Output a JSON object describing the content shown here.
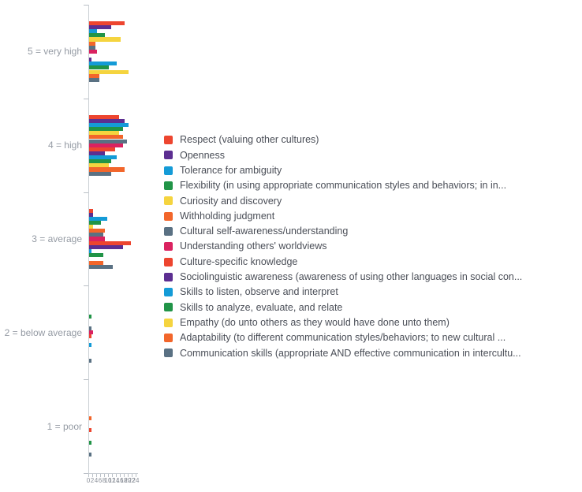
{
  "chart_data": {
    "type": "bar",
    "orientation": "horizontal",
    "title": "",
    "xlabel": "",
    "ylabel": "",
    "xlim": [
      0,
      24
    ],
    "grid": false,
    "legend_position": "right",
    "categories": [
      "5 = very high",
      "4 = high",
      "3 = average",
      "2 = below average",
      "1 = poor"
    ],
    "x_ticks": [
      0,
      2,
      4,
      6,
      8,
      10,
      12,
      14,
      16,
      18,
      20,
      22,
      24
    ],
    "series": [
      {
        "name": "Respect (valuing other cultures)",
        "color": "#ED452F",
        "values": [
          18,
          15,
          2,
          0,
          0
        ]
      },
      {
        "name": "Openness",
        "color": "#5C2E91",
        "values": [
          11,
          18,
          2,
          0,
          0
        ]
      },
      {
        "name": "Tolerance for ambiguity",
        "color": "#149BD7",
        "values": [
          4,
          20,
          9,
          0,
          0
        ]
      },
      {
        "name": "Flexibility (in using appropriate communication styles and behaviors; in in...",
        "color": "#219447",
        "values": [
          8,
          17,
          6,
          1,
          0
        ]
      },
      {
        "name": "Curiosity and discovery",
        "color": "#F5D43F",
        "values": [
          16,
          15,
          2,
          0,
          0
        ]
      },
      {
        "name": "Withholding judgment",
        "color": "#F2662B",
        "values": [
          3,
          17,
          8,
          0,
          1
        ]
      },
      {
        "name": "Cultural self-awareness/understanding",
        "color": "#5A7183",
        "values": [
          3,
          19,
          7,
          1,
          0
        ]
      },
      {
        "name": "Understanding others' worldviews",
        "color": "#DA2260",
        "values": [
          4,
          17,
          8,
          2,
          0
        ]
      },
      {
        "name": "Culture-specific knowledge",
        "color": "#ED452F",
        "values": [
          0,
          13,
          21,
          1,
          1
        ]
      },
      {
        "name": "Sociolinguistic awareness (awareness of using other languages in social con...",
        "color": "#5C2E91",
        "values": [
          1,
          8,
          17,
          0,
          0
        ]
      },
      {
        "name": "Skills to listen, observe and interpret",
        "color": "#149BD7",
        "values": [
          14,
          14,
          1,
          1,
          0
        ]
      },
      {
        "name": "Skills to analyze, evaluate, and relate",
        "color": "#219447",
        "values": [
          10,
          11,
          7,
          0,
          1
        ]
      },
      {
        "name": "Empathy (do unto others as they would have done unto them)",
        "color": "#F5D43F",
        "values": [
          20,
          10,
          0,
          0,
          0
        ]
      },
      {
        "name": "Adaptability (to different communication styles/behaviors; to new cultural ...",
        "color": "#F2662B",
        "values": [
          5,
          18,
          7,
          0,
          0
        ]
      },
      {
        "name": "Communication skills (appropriate AND effective communication in intercultu...",
        "color": "#5A7183",
        "values": [
          5,
          11,
          12,
          1,
          1
        ]
      }
    ]
  },
  "style": {
    "axis_color": "#c9ced3",
    "category_label_color": "#959ba4",
    "tick_label_color": "#8a8f98",
    "legend_text_color": "#4a4e57",
    "background": "#ffffff"
  }
}
